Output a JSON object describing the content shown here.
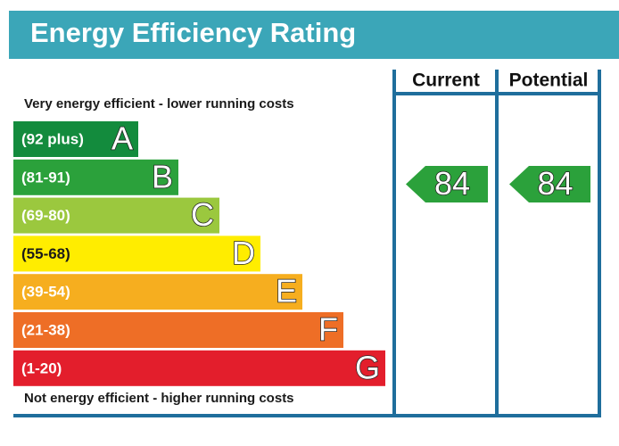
{
  "title": "Energy Efficiency Rating",
  "top_note": "Very energy efficient - lower running costs",
  "bottom_note": "Not energy efficient - higher running costs",
  "columns": [
    "Current",
    "Potential"
  ],
  "bands": [
    {
      "range": "(92 plus)",
      "letter": "A",
      "color": "#138b3d",
      "text_color": "#ffffff"
    },
    {
      "range": "(81-91)",
      "letter": "B",
      "color": "#2ba13b",
      "text_color": "#ffffff"
    },
    {
      "range": "(69-80)",
      "letter": "C",
      "color": "#9bc83e",
      "text_color": "#ffffff"
    },
    {
      "range": "(55-68)",
      "letter": "D",
      "color": "#ffed00",
      "text_color": "#1a1a1a"
    },
    {
      "range": "(39-54)",
      "letter": "E",
      "color": "#f6ae1f",
      "text_color": "#ffffff"
    },
    {
      "range": "(21-38)",
      "letter": "F",
      "color": "#ee6e26",
      "text_color": "#ffffff"
    },
    {
      "range": "(1-20)",
      "letter": "G",
      "color": "#e31e2c",
      "text_color": "#ffffff"
    }
  ],
  "ratings": [
    {
      "value": "84",
      "band": 1
    },
    {
      "value": "84",
      "band": 1
    }
  ]
}
